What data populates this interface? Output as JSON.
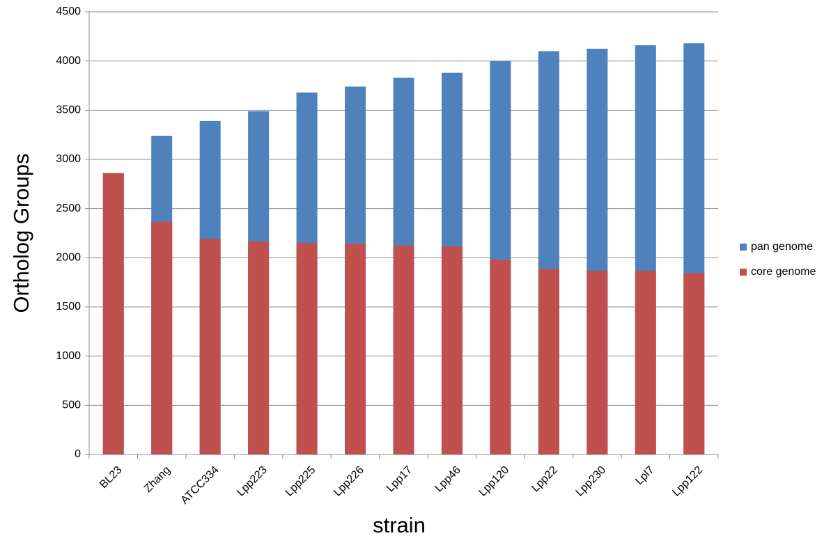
{
  "chart_data": {
    "type": "bar",
    "barmode": "overlay",
    "x_label": "strain",
    "y_label": "Ortholog Groups",
    "categories": [
      "BL23",
      "Zhang",
      "ATCC334",
      "Lpp223",
      "Lpp225",
      "Lpp226",
      "Lpp17",
      "Lpp46",
      "Lpp120",
      "Lpp22",
      "Lpp230",
      "Lpl7",
      "Lpp122"
    ],
    "series": [
      {
        "name": "pan genome",
        "color": "#4f81bd",
        "values": [
          2860,
          3240,
          3390,
          3490,
          3680,
          3740,
          3830,
          3880,
          4000,
          4100,
          4125,
          4160,
          4180
        ]
      },
      {
        "name": "core genome",
        "color": "#c0504d",
        "values": [
          2860,
          2365,
          2190,
          2165,
          2150,
          2140,
          2125,
          2115,
          1980,
          1885,
          1865,
          1865,
          1845
        ]
      }
    ],
    "ylim": [
      0,
      4500
    ],
    "yticks": [
      0,
      500,
      1000,
      1500,
      2000,
      2500,
      3000,
      3500,
      4000,
      4500
    ],
    "grid": true,
    "legend": "right"
  }
}
